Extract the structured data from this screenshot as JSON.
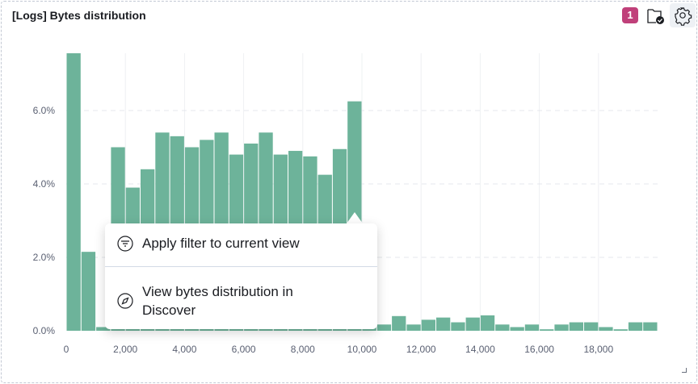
{
  "panel": {
    "title": "[Logs] Bytes distribution",
    "badge_count": "1"
  },
  "icons": {
    "folder": "folder-check-icon",
    "gear": "gear-icon",
    "filter": "filter-icon",
    "compass": "compass-icon"
  },
  "popover": {
    "items": [
      {
        "label": "Apply filter to current view"
      },
      {
        "label": "View bytes distribution in Discover"
      }
    ]
  },
  "chart_data": {
    "type": "bar",
    "bin_width": 500,
    "x_start": [
      0,
      500,
      1000,
      1500,
      2000,
      2500,
      3000,
      3500,
      4000,
      4500,
      5000,
      5500,
      6000,
      6500,
      7000,
      7500,
      8000,
      8500,
      9000,
      9500,
      10000,
      10500,
      11000,
      11500,
      12000,
      12500,
      13000,
      13500,
      14000,
      14500,
      15000,
      15500,
      16000,
      16500,
      17000,
      17500,
      18000,
      18500,
      19000,
      19500
    ],
    "values": [
      7.56,
      2.15,
      0.1,
      5.0,
      3.9,
      4.4,
      5.4,
      5.3,
      5.0,
      5.2,
      5.4,
      4.8,
      5.1,
      5.4,
      4.8,
      4.9,
      4.75,
      4.25,
      4.95,
      6.25,
      0.17,
      0.17,
      0.4,
      0.17,
      0.3,
      0.36,
      0.23,
      0.36,
      0.42,
      0.17,
      0.1,
      0.17,
      0.04,
      0.17,
      0.23,
      0.23,
      0.1,
      0.04,
      0.23,
      0.23
    ],
    "xlim": [
      0,
      20000
    ],
    "ylim": [
      0,
      7.56
    ],
    "x_ticks": [
      "0",
      "2,000",
      "4,000",
      "6,000",
      "8,000",
      "10,000",
      "12,000",
      "14,000",
      "16,000",
      "18,000"
    ],
    "y_ticks": [
      "0.0%",
      "2.0%",
      "4.0%",
      "6.0%"
    ],
    "color": "#6db39a",
    "grid": true
  }
}
